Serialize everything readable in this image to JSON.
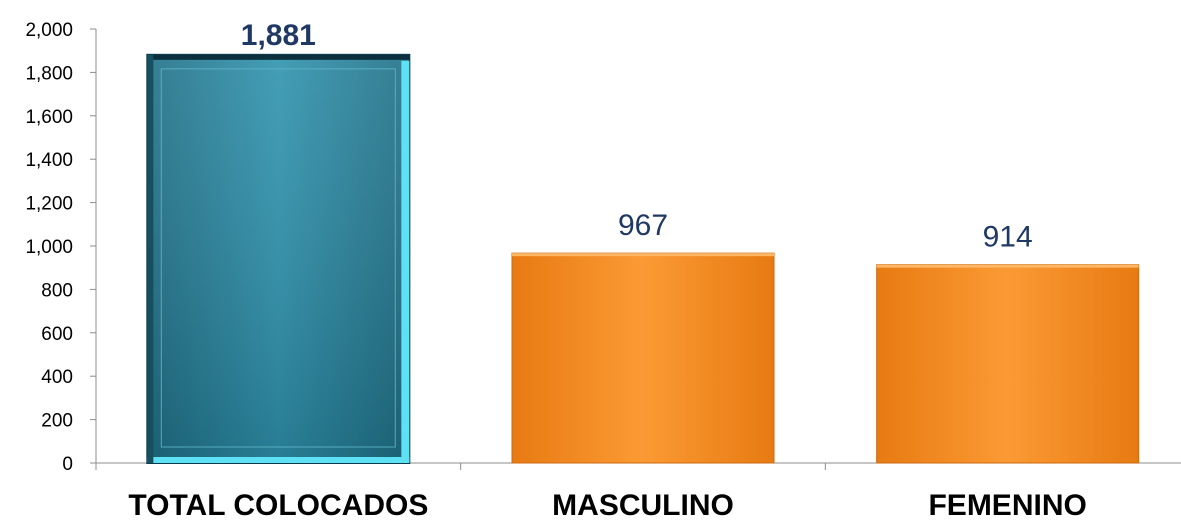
{
  "chart_data": {
    "type": "bar",
    "title": "",
    "xlabel": "",
    "ylabel": "",
    "categories": [
      "TOTAL COLOCADOS",
      "MASCULINO",
      "FEMENINO"
    ],
    "values": [
      1881,
      967,
      914
    ],
    "data_labels": [
      "1,881",
      "967",
      "914"
    ],
    "ylim": [
      0,
      2000
    ],
    "yticks": [
      0,
      200,
      400,
      600,
      800,
      1000,
      1200,
      1400,
      1600,
      1800,
      2000
    ],
    "ytick_labels": [
      "0",
      "200",
      "400",
      "600",
      "800",
      "1,000",
      "1,200",
      "1,400",
      "1,600",
      "1,800",
      "2,000"
    ],
    "grid": false,
    "legend": "none",
    "bar_colors": [
      "#2e8ba6",
      "#f7931e",
      "#f7931e"
    ],
    "highlight_border_color": "#5ee0f5",
    "data_label_color": "#1f3864"
  }
}
